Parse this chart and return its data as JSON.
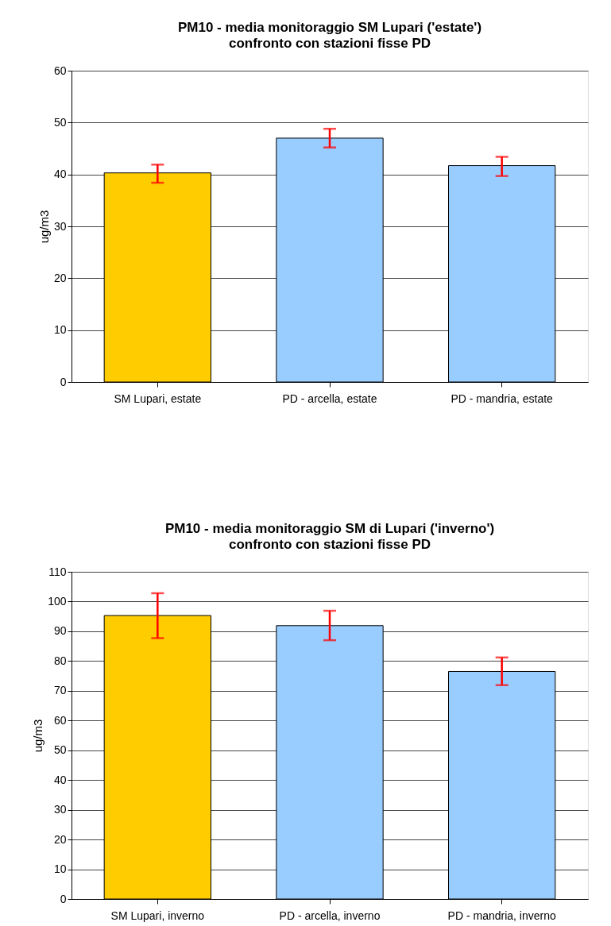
{
  "chart_data": [
    {
      "type": "bar",
      "title": "PM10 - media monitoraggio SM Lupari ('estate')",
      "subtitle": "confronto con stazioni fisse PD",
      "ylabel": "ug/m3",
      "categories": [
        "SM Lupari,  estate",
        "PD - arcella, estate",
        "PD - mandria, estate"
      ],
      "values": [
        40.3,
        47.0,
        41.7
      ],
      "colors": [
        "#ffcc00",
        "#99ccff",
        "#99ccff"
      ],
      "errors": [
        [
          38.4,
          41.9
        ],
        [
          45.2,
          48.8
        ],
        [
          39.7,
          43.4
        ]
      ],
      "ylim": [
        0,
        60
      ],
      "yticks": [
        0,
        10,
        20,
        30,
        40,
        50,
        60
      ],
      "grid": "y"
    },
    {
      "type": "bar",
      "title": "PM10 - media monitoraggio SM di Lupari ('inverno')",
      "subtitle": "confronto con stazioni fisse PD",
      "ylabel": "ug/m3",
      "categories": [
        "SM Lupari, inverno",
        "PD - arcella, inverno",
        "PD - mandria, inverno"
      ],
      "values": [
        95.3,
        91.9,
        76.5
      ],
      "colors": [
        "#ffcc00",
        "#99ccff",
        "#99ccff"
      ],
      "errors": [
        [
          87.7,
          102.8
        ],
        [
          87.0,
          96.9
        ],
        [
          71.9,
          81.2
        ]
      ],
      "ylim": [
        0,
        110
      ],
      "yticks": [
        0,
        10,
        20,
        30,
        40,
        50,
        60,
        70,
        80,
        90,
        100,
        110
      ],
      "grid": "y"
    }
  ]
}
